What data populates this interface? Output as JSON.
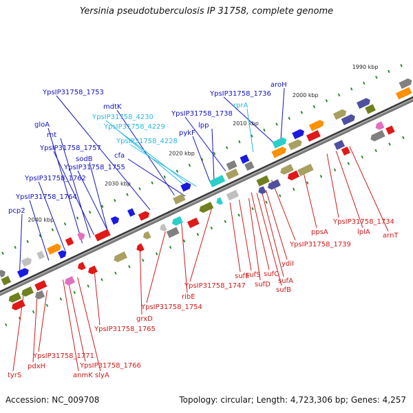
{
  "title": "Yersinia pseudotuberculosis IP 31758, complete genome",
  "footer": {
    "accession": "Accession: NC_009708",
    "summary": "Topology: circular; Length: 4,723,306 bp; Genes: 4,257"
  },
  "colors": {
    "top_label": "#1010c0",
    "highlight_label": "#28b8e0",
    "bottom_label": "#d01818",
    "backbone": "#808080",
    "tick_dot": "#2a8a2a"
  },
  "ticks": [
    "1990 kbp",
    "2000 kbp",
    "2010 kbp",
    "2020 kbp",
    "2030 kbp",
    "2040 kbp"
  ],
  "labels_top": [
    "YpsIP31758_1753",
    "mdtK",
    "YpsIP31758_4230",
    "YpsIP31758_4229",
    "YpsIP31758_4228",
    "cfa",
    "gloA",
    "rnt",
    "YpsIP31758_1757",
    "sodB",
    "YpsIP31758_1755",
    "YpsIP31758_1762",
    "YpsIP31758_1764",
    "pcp2",
    "YpsIP31758_1738",
    "lpp",
    "pykF",
    "YpsIP31758_1736",
    "aroH",
    "rprA"
  ],
  "labels_bottom": [
    "ppsA",
    "YpsIP31758_1734",
    "lplA",
    "arnT",
    "YpsIP31758_1739",
    "ydiI",
    "sufA",
    "sufB",
    "sufC",
    "sufD",
    "sufS",
    "sufE",
    "YpsIP31758_1747",
    "ribE",
    "YpsIP31758_1754",
    "grxD",
    "YpsIP31758_1765",
    "tyrS",
    "pdxH",
    "YpsIP31758_1771",
    "anmK",
    "slyA",
    "YpsIP31758_1766"
  ]
}
